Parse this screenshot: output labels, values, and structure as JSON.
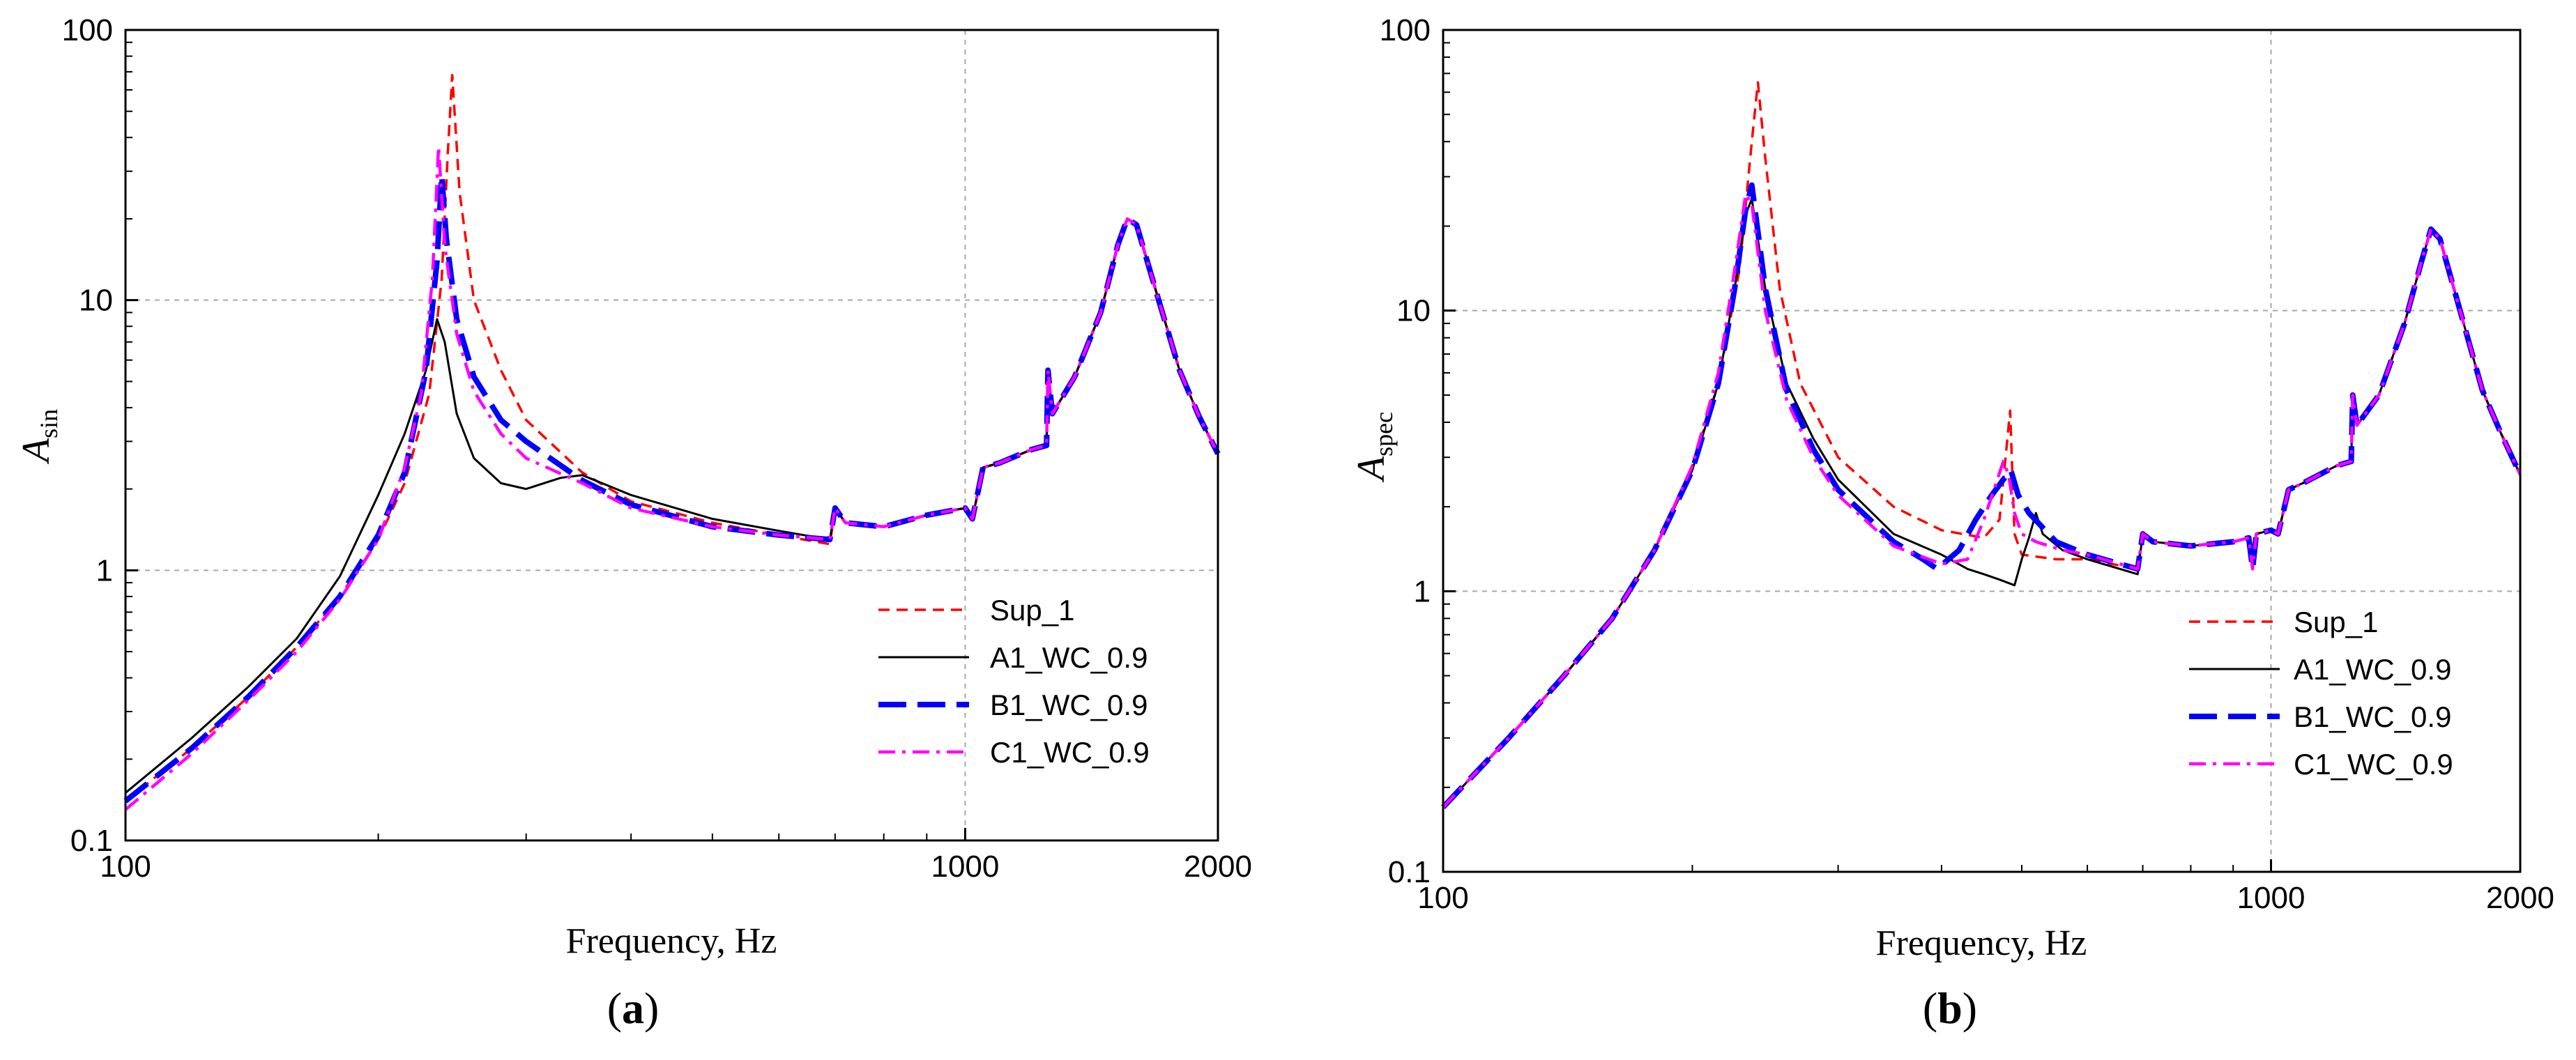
{
  "chart_data": [
    {
      "panel_label": "a",
      "type": "line",
      "xscale": "log",
      "yscale": "log",
      "xlim": [
        100,
        2000
      ],
      "ylim": [
        0.1,
        100
      ],
      "xlabel": "Frequency, Hz",
      "ylabel_main": "A",
      "ylabel_sub": "sin",
      "x_ticks": [
        {
          "value": 100,
          "label": "100"
        },
        {
          "value": 1000,
          "label": "1000"
        },
        {
          "value": 2000,
          "label": "2000"
        }
      ],
      "y_ticks": [
        {
          "value": 0.1,
          "label": "0.1"
        },
        {
          "value": 1,
          "label": "1"
        },
        {
          "value": 10,
          "label": "10"
        },
        {
          "value": 100,
          "label": "100"
        }
      ],
      "grid": true,
      "legend_position": "bottom-right",
      "series": [
        {
          "name": "Sup_1",
          "color": "#ff0000",
          "style": "dashed",
          "x": [
            100,
            120,
            140,
            160,
            180,
            200,
            215,
            230,
            238,
            242,
            245,
            250,
            260,
            280,
            300,
            350,
            400,
            500,
            600,
            690,
            700,
            720,
            800,
            900,
            1000,
            1020,
            1050,
            1100,
            1200,
            1250,
            1255,
            1270,
            1350,
            1450,
            1520,
            1560,
            1600,
            1700,
            1800,
            1900,
            2000
          ],
          "y": [
            0.14,
            0.22,
            0.34,
            0.52,
            0.8,
            1.3,
            2.1,
            4.5,
            12,
            35,
            68,
            25,
            10,
            5.5,
            3.6,
            2.3,
            1.8,
            1.5,
            1.35,
            1.25,
            1.7,
            1.5,
            1.45,
            1.6,
            1.7,
            1.55,
            2.4,
            2.5,
            2.8,
            2.9,
            5.5,
            3.8,
            5.2,
            9,
            16,
            20,
            19,
            10,
            5.5,
            3.7,
            2.7
          ]
        },
        {
          "name": "A1_WC_0.9",
          "color": "#000000",
          "style": "solid",
          "x": [
            100,
            120,
            140,
            160,
            180,
            200,
            215,
            228,
            235,
            240,
            248,
            260,
            280,
            300,
            330,
            350,
            400,
            500,
            600,
            690,
            700,
            720,
            800,
            900,
            1000,
            1020,
            1050,
            1100,
            1200,
            1250,
            1255,
            1270,
            1350,
            1450,
            1520,
            1560,
            1600,
            1700,
            1800,
            1900,
            2000
          ],
          "y": [
            0.15,
            0.24,
            0.37,
            0.56,
            0.95,
            1.9,
            3.2,
            5.5,
            8.5,
            7,
            3.8,
            2.6,
            2.1,
            2.0,
            2.2,
            2.25,
            1.9,
            1.55,
            1.4,
            1.3,
            1.7,
            1.5,
            1.45,
            1.6,
            1.7,
            1.55,
            2.4,
            2.5,
            2.8,
            2.9,
            5.5,
            3.8,
            5.2,
            9,
            16,
            20,
            19,
            10,
            5.5,
            3.7,
            2.7
          ]
        },
        {
          "name": "B1_WC_0.9",
          "color": "#0000ff",
          "style": "longdash",
          "x": [
            100,
            120,
            140,
            160,
            180,
            200,
            215,
            228,
            235,
            238,
            241,
            248,
            260,
            280,
            300,
            350,
            400,
            500,
            600,
            690,
            700,
            720,
            800,
            900,
            1000,
            1020,
            1050,
            1100,
            1200,
            1250,
            1255,
            1270,
            1350,
            1450,
            1520,
            1560,
            1600,
            1700,
            1800,
            1900,
            2000
          ],
          "y": [
            0.14,
            0.22,
            0.34,
            0.52,
            0.8,
            1.35,
            2.3,
            5.5,
            14,
            29,
            17,
            8.5,
            5.2,
            3.6,
            3.0,
            2.15,
            1.75,
            1.45,
            1.35,
            1.3,
            1.7,
            1.5,
            1.45,
            1.6,
            1.7,
            1.55,
            2.4,
            2.5,
            2.8,
            2.9,
            5.5,
            3.8,
            5.2,
            9,
            16,
            20,
            19,
            10,
            5.5,
            3.7,
            2.7
          ]
        },
        {
          "name": "C1_WC_0.9",
          "color": "#ff00ff",
          "style": "dashdot",
          "x": [
            100,
            120,
            140,
            160,
            180,
            200,
            215,
            225,
            232,
            236,
            240,
            248,
            260,
            280,
            300,
            350,
            400,
            500,
            600,
            690,
            700,
            720,
            800,
            900,
            1000,
            1020,
            1050,
            1100,
            1200,
            1250,
            1255,
            1270,
            1350,
            1450,
            1520,
            1560,
            1600,
            1700,
            1800,
            1900,
            2000
          ],
          "y": [
            0.13,
            0.21,
            0.33,
            0.5,
            0.78,
            1.3,
            2.4,
            4.5,
            12,
            37,
            16,
            7.5,
            4.6,
            3.2,
            2.6,
            2.1,
            1.7,
            1.45,
            1.35,
            1.3,
            1.7,
            1.5,
            1.45,
            1.6,
            1.7,
            1.55,
            2.4,
            2.5,
            2.8,
            2.9,
            5.5,
            3.8,
            5.2,
            9,
            16,
            20,
            19,
            10,
            5.5,
            3.7,
            2.7
          ]
        }
      ]
    },
    {
      "panel_label": "b",
      "type": "line",
      "xscale": "log",
      "yscale": "log",
      "xlim": [
        100,
        2000
      ],
      "ylim": [
        0.1,
        100
      ],
      "xlabel": "Frequency, Hz",
      "ylabel_main": "A",
      "ylabel_sub": "spec",
      "x_ticks": [
        {
          "value": 100,
          "label": "100"
        },
        {
          "value": 1000,
          "label": "1000"
        },
        {
          "value": 2000,
          "label": "2000"
        }
      ],
      "y_ticks": [
        {
          "value": 0.1,
          "label": "0.1"
        },
        {
          "value": 1,
          "label": "1"
        },
        {
          "value": 10,
          "label": "10"
        },
        {
          "value": 100,
          "label": "100"
        }
      ],
      "grid": true,
      "legend_position": "bottom-right",
      "series": [
        {
          "name": "Sup_1",
          "color": "#ff0000",
          "style": "dashed",
          "x": [
            100,
            120,
            140,
            160,
            180,
            200,
            215,
            228,
            236,
            240,
            245,
            255,
            270,
            300,
            350,
            400,
            450,
            470,
            478,
            484,
            490,
            500,
            550,
            600,
            690,
            700,
            720,
            800,
            900,
            940,
            950,
            960,
            1000,
            1020,
            1050,
            1100,
            1200,
            1250,
            1255,
            1270,
            1350,
            1450,
            1520,
            1560,
            1600,
            1700,
            1800,
            1900,
            2000
          ],
          "y": [
            0.17,
            0.3,
            0.5,
            0.8,
            1.4,
            2.8,
            5.5,
            14,
            40,
            65,
            35,
            12,
            5.5,
            3.0,
            2.0,
            1.65,
            1.55,
            1.8,
            3.0,
            4.4,
            1.6,
            1.35,
            1.3,
            1.3,
            1.2,
            1.6,
            1.5,
            1.45,
            1.5,
            1.55,
            1.2,
            1.6,
            1.65,
            1.6,
            2.3,
            2.45,
            2.8,
            2.9,
            5.0,
            3.9,
            5.0,
            9,
            15,
            19.5,
            18,
            9.5,
            5.2,
            3.6,
            2.6
          ]
        },
        {
          "name": "A1_WC_0.9",
          "color": "#000000",
          "style": "solid",
          "x": [
            100,
            120,
            140,
            160,
            180,
            200,
            215,
            225,
            232,
            236,
            245,
            260,
            280,
            300,
            350,
            400,
            430,
            450,
            470,
            490,
            500,
            510,
            520,
            530,
            560,
            600,
            690,
            700,
            720,
            800,
            900,
            940,
            950,
            960,
            1000,
            1020,
            1050,
            1100,
            1200,
            1250,
            1255,
            1270,
            1350,
            1450,
            1520,
            1560,
            1600,
            1700,
            1800,
            1900,
            2000
          ],
          "y": [
            0.17,
            0.3,
            0.5,
            0.8,
            1.4,
            2.7,
            5.5,
            12,
            22,
            25,
            12,
            5.5,
            3.5,
            2.5,
            1.6,
            1.35,
            1.2,
            1.15,
            1.1,
            1.05,
            1.3,
            1.55,
            1.9,
            1.6,
            1.4,
            1.3,
            1.15,
            1.6,
            1.5,
            1.45,
            1.5,
            1.55,
            1.2,
            1.6,
            1.65,
            1.6,
            2.3,
            2.45,
            2.8,
            2.9,
            5.0,
            3.9,
            5.0,
            9,
            15,
            19.5,
            18,
            9.5,
            5.2,
            3.6,
            2.6
          ]
        },
        {
          "name": "B1_WC_0.9",
          "color": "#0000ff",
          "style": "longdash",
          "x": [
            100,
            120,
            140,
            160,
            180,
            200,
            215,
            225,
            232,
            236,
            245,
            260,
            280,
            300,
            350,
            380,
            395,
            420,
            440,
            460,
            475,
            485,
            495,
            510,
            550,
            600,
            690,
            700,
            720,
            800,
            900,
            940,
            950,
            960,
            1000,
            1020,
            1050,
            1100,
            1200,
            1250,
            1255,
            1270,
            1350,
            1450,
            1520,
            1560,
            1600,
            1700,
            1800,
            1900,
            2000
          ],
          "y": [
            0.17,
            0.3,
            0.5,
            0.8,
            1.4,
            2.7,
            5.5,
            12,
            23,
            28,
            12,
            5.2,
            3.2,
            2.3,
            1.5,
            1.3,
            1.2,
            1.4,
            1.8,
            2.2,
            2.5,
            2.7,
            2.2,
            1.9,
            1.5,
            1.35,
            1.2,
            1.6,
            1.5,
            1.45,
            1.5,
            1.55,
            1.2,
            1.6,
            1.65,
            1.6,
            2.3,
            2.45,
            2.8,
            2.9,
            5.0,
            3.9,
            5.0,
            9,
            15,
            19.5,
            18,
            9.5,
            5.2,
            3.6,
            2.6
          ]
        },
        {
          "name": "C1_WC_0.9",
          "color": "#ff00ff",
          "style": "dashdot",
          "x": [
            100,
            120,
            140,
            160,
            180,
            200,
            215,
            225,
            232,
            236,
            245,
            260,
            280,
            300,
            350,
            400,
            430,
            450,
            465,
            475,
            482,
            490,
            500,
            520,
            560,
            600,
            690,
            700,
            720,
            800,
            900,
            940,
            950,
            960,
            1000,
            1020,
            1050,
            1100,
            1200,
            1250,
            1255,
            1270,
            1350,
            1450,
            1520,
            1560,
            1600,
            1700,
            1800,
            1900,
            2000
          ],
          "y": [
            0.17,
            0.3,
            0.5,
            0.8,
            1.4,
            2.8,
            6,
            14,
            26,
            24,
            10,
            4.8,
            3.0,
            2.2,
            1.45,
            1.25,
            1.3,
            1.8,
            2.4,
            2.9,
            2.6,
            1.9,
            1.6,
            1.5,
            1.4,
            1.35,
            1.2,
            1.6,
            1.5,
            1.45,
            1.5,
            1.55,
            1.2,
            1.6,
            1.65,
            1.6,
            2.3,
            2.45,
            2.8,
            2.9,
            5.0,
            3.9,
            5.0,
            9,
            15,
            19.5,
            18,
            9.5,
            5.2,
            3.6,
            2.6
          ]
        }
      ]
    }
  ]
}
